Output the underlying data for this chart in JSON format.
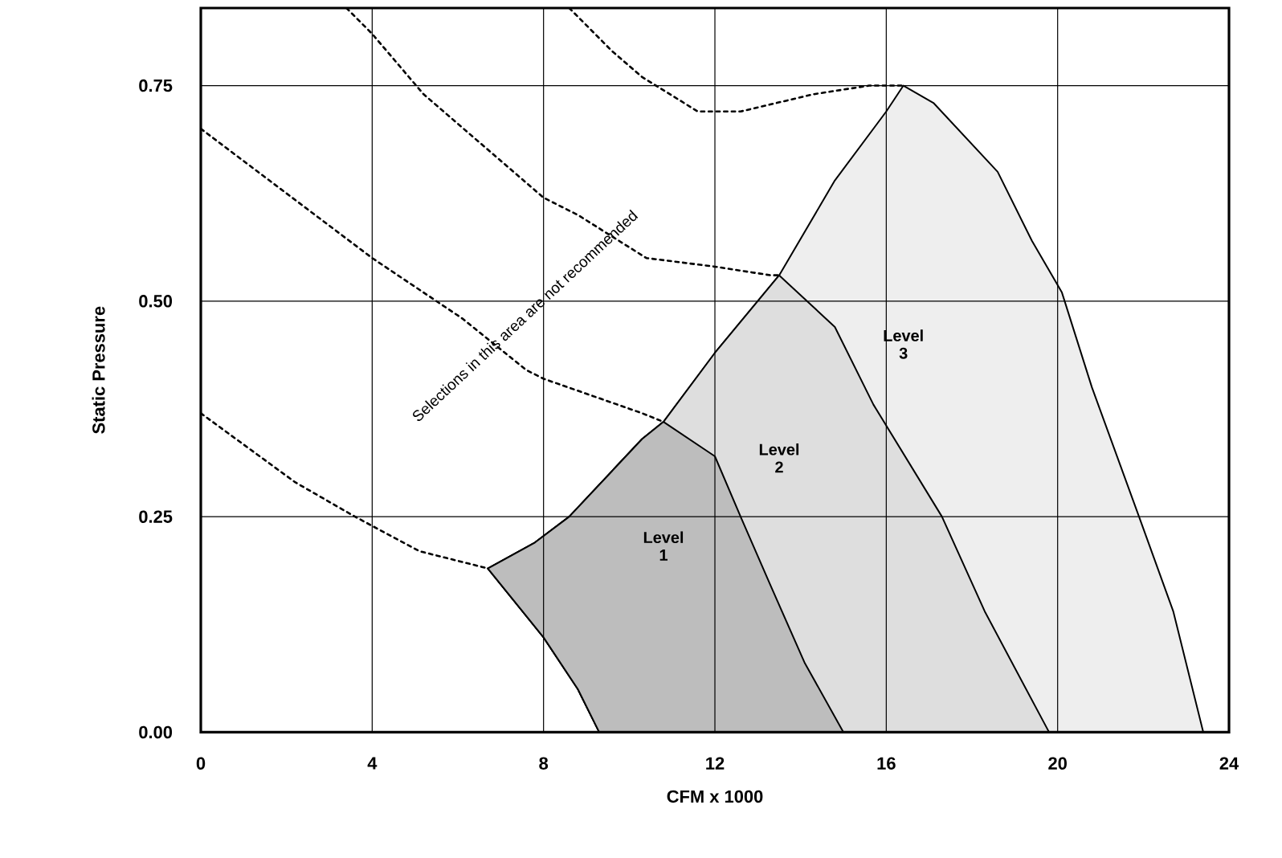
{
  "chart_data": {
    "type": "area",
    "xlabel": "CFM x 1000",
    "ylabel": "Static Pressure",
    "xlim": [
      0,
      24
    ],
    "ylim": [
      0,
      0.84
    ],
    "xticks": [
      0,
      4,
      8,
      12,
      16,
      20,
      24
    ],
    "yticks": [
      {
        "value": 0,
        "label": "0.00"
      },
      {
        "value": 0.25,
        "label": "0.25"
      },
      {
        "value": 0.5,
        "label": "0.50"
      },
      {
        "value": 0.75,
        "label": "0.75"
      }
    ],
    "grid": true,
    "annotations": [
      "Selections in this area are not recommended"
    ],
    "series": [
      {
        "name": "Level 1",
        "color": "#bdbdbd",
        "x": [
          9.3,
          8.8,
          8.0,
          6.7,
          7.8,
          8.6,
          10.3,
          10.8,
          12.0,
          12.6,
          13.3,
          14.1,
          15.0
        ],
        "values": [
          0,
          0.05,
          0.11,
          0.19,
          0.22,
          0.25,
          0.34,
          0.36,
          0.32,
          0.25,
          0.17,
          0.08,
          0
        ]
      },
      {
        "name": "Level 2",
        "color": "#dedede",
        "x": [
          9.3,
          8.8,
          8.0,
          6.7,
          7.8,
          8.6,
          10.3,
          10.8,
          12.0,
          13.5,
          14.8,
          15.7,
          17.3,
          18.3,
          19.8
        ],
        "values": [
          0,
          0.05,
          0.11,
          0.19,
          0.22,
          0.25,
          0.34,
          0.36,
          0.44,
          0.53,
          0.47,
          0.38,
          0.25,
          0.14,
          0
        ]
      },
      {
        "name": "Level 3",
        "color": "#eeeeee",
        "x": [
          9.3,
          8.8,
          8.0,
          6.7,
          7.8,
          8.6,
          10.3,
          10.8,
          12.0,
          13.5,
          14.8,
          16.0,
          16.4,
          17.1,
          18.6,
          19.4,
          20.1,
          20.8,
          21.9,
          22.7,
          23.4
        ],
        "values": [
          0,
          0.05,
          0.11,
          0.19,
          0.22,
          0.25,
          0.34,
          0.36,
          0.44,
          0.53,
          0.64,
          0.72,
          0.75,
          0.73,
          0.65,
          0.57,
          0.51,
          0.4,
          0.25,
          0.14,
          0
        ]
      },
      {
        "type": "line",
        "line_style": "dashed",
        "color": "#000000",
        "x": [
          0,
          2.2,
          3.6,
          5.1,
          6.7
        ],
        "values": [
          0.37,
          0.29,
          0.25,
          0.21,
          0.19
        ]
      },
      {
        "type": "line",
        "line_style": "dashed",
        "color": "#000000",
        "x": [
          0,
          4.0,
          6.1,
          7.6,
          8.0,
          10.3,
          10.8
        ],
        "values": [
          0.7,
          0.55,
          0.48,
          0.42,
          0.41,
          0.37,
          0.36
        ]
      },
      {
        "type": "line",
        "line_style": "dashed",
        "color": "#000000",
        "x": [
          3.4,
          4.0,
          5.2,
          8.0,
          8.8,
          10.4,
          12.0,
          13.3,
          13.5
        ],
        "values": [
          0.84,
          0.81,
          0.74,
          0.62,
          0.6,
          0.55,
          0.54,
          0.53,
          0.53
        ]
      },
      {
        "type": "line",
        "line_style": "dashed",
        "color": "#000000",
        "x": [
          8.6,
          9.6,
          10.3,
          11.6,
          12.6,
          14.3,
          15.6,
          16.4
        ],
        "values": [
          0.84,
          0.79,
          0.76,
          0.72,
          0.72,
          0.74,
          0.75,
          0.75
        ]
      }
    ]
  }
}
